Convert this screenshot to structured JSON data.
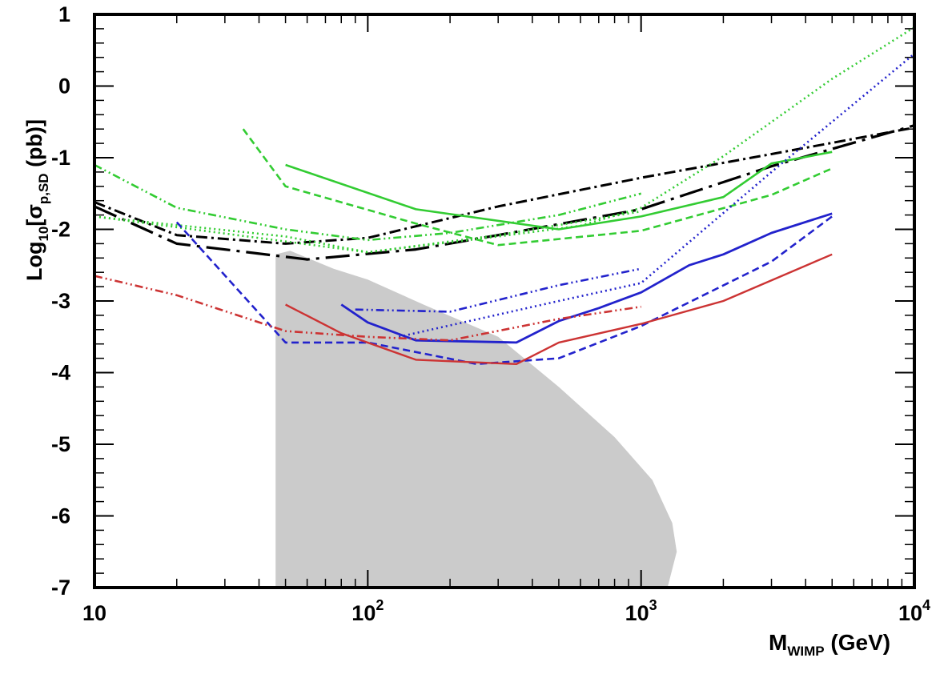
{
  "chart_data": {
    "type": "line",
    "xscale": "log",
    "xlim_log10": [
      1,
      4
    ],
    "ylim": [
      -7,
      1
    ],
    "xlabel": {
      "main": "M",
      "sub": "WIMP",
      "unit": " (GeV)"
    },
    "ylabel": {
      "pre": "Log",
      "sub1": "10",
      "mid": "[σ",
      "sub2": "p,SD",
      "post": " (pb)]"
    },
    "x_ticks": [
      {
        "value": 10,
        "base": "10",
        "exp": ""
      },
      {
        "value": 100,
        "base": "10",
        "exp": "2"
      },
      {
        "value": 1000,
        "base": "10",
        "exp": "3"
      },
      {
        "value": 10000,
        "base": "10",
        "exp": "4"
      }
    ],
    "y_ticks": [
      {
        "value": 1,
        "label": "1"
      },
      {
        "value": 0,
        "label": "0"
      },
      {
        "value": -1,
        "label": "-1"
      },
      {
        "value": -2,
        "label": "-2"
      },
      {
        "value": -3,
        "label": "-3"
      },
      {
        "value": -4,
        "label": "-4"
      },
      {
        "value": -5,
        "label": "-5"
      },
      {
        "value": -6,
        "label": "-6"
      },
      {
        "value": -7,
        "label": "-7"
      }
    ],
    "region": {
      "name": "model-scan-region",
      "color": "#c8c8c8",
      "points": [
        [
          46,
          -7
        ],
        [
          46,
          -2.35
        ],
        [
          52,
          -2.3
        ],
        [
          75,
          -2.55
        ],
        [
          100,
          -2.7
        ],
        [
          160,
          -3.05
        ],
        [
          300,
          -3.5
        ],
        [
          500,
          -4.2
        ],
        [
          800,
          -4.9
        ],
        [
          1100,
          -5.5
        ],
        [
          1300,
          -6.1
        ],
        [
          1350,
          -6.5
        ],
        [
          1250,
          -7
        ]
      ]
    },
    "series": [
      {
        "name": "black-dashdot",
        "color": "#000000",
        "dash": "14,5,3,5",
        "width": 3,
        "points": [
          [
            10,
            -1.62
          ],
          [
            20,
            -2.08
          ],
          [
            50,
            -2.2
          ],
          [
            100,
            -2.12
          ],
          [
            300,
            -1.68
          ],
          [
            1000,
            -1.28
          ],
          [
            3000,
            -0.95
          ],
          [
            10000,
            -0.58
          ]
        ]
      },
      {
        "name": "black-longdash",
        "color": "#000000",
        "dash": "30,8,4,8",
        "width": 3.2,
        "points": [
          [
            10,
            -1.68
          ],
          [
            20,
            -2.2
          ],
          [
            60,
            -2.42
          ],
          [
            150,
            -2.28
          ],
          [
            300,
            -2.08
          ],
          [
            1000,
            -1.72
          ],
          [
            3000,
            -1.12
          ],
          [
            10000,
            -0.55
          ]
        ]
      },
      {
        "name": "green-solid",
        "color": "#33cc33",
        "dash": "",
        "width": 2.6,
        "points": [
          [
            50,
            -1.1
          ],
          [
            150,
            -1.72
          ],
          [
            500,
            -2.0
          ],
          [
            1000,
            -1.82
          ],
          [
            2000,
            -1.55
          ],
          [
            3000,
            -1.08
          ],
          [
            5000,
            -0.92
          ]
        ]
      },
      {
        "name": "green-dashed",
        "color": "#33cc33",
        "dash": "9,5",
        "width": 2.6,
        "points": [
          [
            35,
            -0.6
          ],
          [
            50,
            -1.4
          ],
          [
            150,
            -1.92
          ],
          [
            300,
            -2.22
          ],
          [
            1000,
            -2.02
          ],
          [
            3000,
            -1.52
          ],
          [
            5000,
            -1.15
          ]
        ]
      },
      {
        "name": "green-dotted-low",
        "color": "#33cc33",
        "dash": "2,4",
        "width": 2.6,
        "points": [
          [
            10,
            -1.82
          ],
          [
            50,
            -2.1
          ],
          [
            100,
            -2.32
          ],
          [
            300,
            -2.1
          ],
          [
            600,
            -1.95
          ],
          [
            1000,
            -1.7
          ],
          [
            2000,
            -0.98
          ],
          [
            5000,
            0.1
          ],
          [
            10000,
            0.82
          ]
        ]
      },
      {
        "name": "green-dashdot",
        "color": "#33cc33",
        "dash": "10,4,2,4,2,4",
        "width": 2.6,
        "points": [
          [
            10,
            -1.1
          ],
          [
            20,
            -1.7
          ],
          [
            50,
            -2.0
          ],
          [
            100,
            -2.15
          ],
          [
            200,
            -2.05
          ],
          [
            500,
            -1.8
          ],
          [
            1000,
            -1.5
          ]
        ]
      },
      {
        "name": "green-dotted",
        "color": "#33cc33",
        "dash": "2,4",
        "width": 2.6,
        "points": [
          [
            10,
            -1.82
          ],
          [
            100,
            -2.32
          ],
          [
            300,
            -2.08
          ],
          [
            1000,
            -1.75
          ]
        ]
      },
      {
        "name": "blue-solid",
        "color": "#2222cc",
        "dash": "",
        "width": 2.8,
        "points": [
          [
            80,
            -3.05
          ],
          [
            100,
            -3.3
          ],
          [
            150,
            -3.55
          ],
          [
            350,
            -3.58
          ],
          [
            500,
            -3.28
          ],
          [
            700,
            -3.1
          ],
          [
            1000,
            -2.88
          ],
          [
            1500,
            -2.5
          ],
          [
            2000,
            -2.35
          ],
          [
            3000,
            -2.05
          ],
          [
            5000,
            -1.78
          ]
        ]
      },
      {
        "name": "blue-dashed",
        "color": "#2222cc",
        "dash": "9,5",
        "width": 2.6,
        "points": [
          [
            20,
            -1.9
          ],
          [
            50,
            -3.58
          ],
          [
            100,
            -3.58
          ],
          [
            250,
            -3.88
          ],
          [
            500,
            -3.8
          ],
          [
            1000,
            -3.35
          ],
          [
            3000,
            -2.45
          ],
          [
            5000,
            -1.82
          ]
        ]
      },
      {
        "name": "blue-dotted",
        "color": "#2222cc",
        "dash": "2,4",
        "width": 2.6,
        "points": [
          [
            130,
            -3.5
          ],
          [
            500,
            -3.0
          ],
          [
            1000,
            -2.75
          ],
          [
            3000,
            -1.2
          ],
          [
            10000,
            0.45
          ]
        ]
      },
      {
        "name": "blue-dashdot",
        "color": "#2222cc",
        "dash": "10,4,2,4,2,4",
        "width": 2.6,
        "points": [
          [
            90,
            -3.12
          ],
          [
            200,
            -3.15
          ],
          [
            500,
            -2.78
          ],
          [
            1000,
            -2.55
          ]
        ]
      },
      {
        "name": "red-solid",
        "color": "#cc3333",
        "dash": "",
        "width": 2.4,
        "points": [
          [
            50,
            -3.05
          ],
          [
            80,
            -3.45
          ],
          [
            150,
            -3.82
          ],
          [
            350,
            -3.88
          ],
          [
            500,
            -3.58
          ],
          [
            1000,
            -3.32
          ],
          [
            2000,
            -3.0
          ],
          [
            5000,
            -2.35
          ]
        ]
      },
      {
        "name": "red-dashdot",
        "color": "#cc3333",
        "dash": "10,4,2,4,2,4",
        "width": 2.6,
        "points": [
          [
            10,
            -2.65
          ],
          [
            20,
            -2.92
          ],
          [
            50,
            -3.42
          ],
          [
            100,
            -3.5
          ],
          [
            200,
            -3.55
          ],
          [
            500,
            -3.25
          ],
          [
            1000,
            -3.08
          ]
        ]
      }
    ]
  }
}
